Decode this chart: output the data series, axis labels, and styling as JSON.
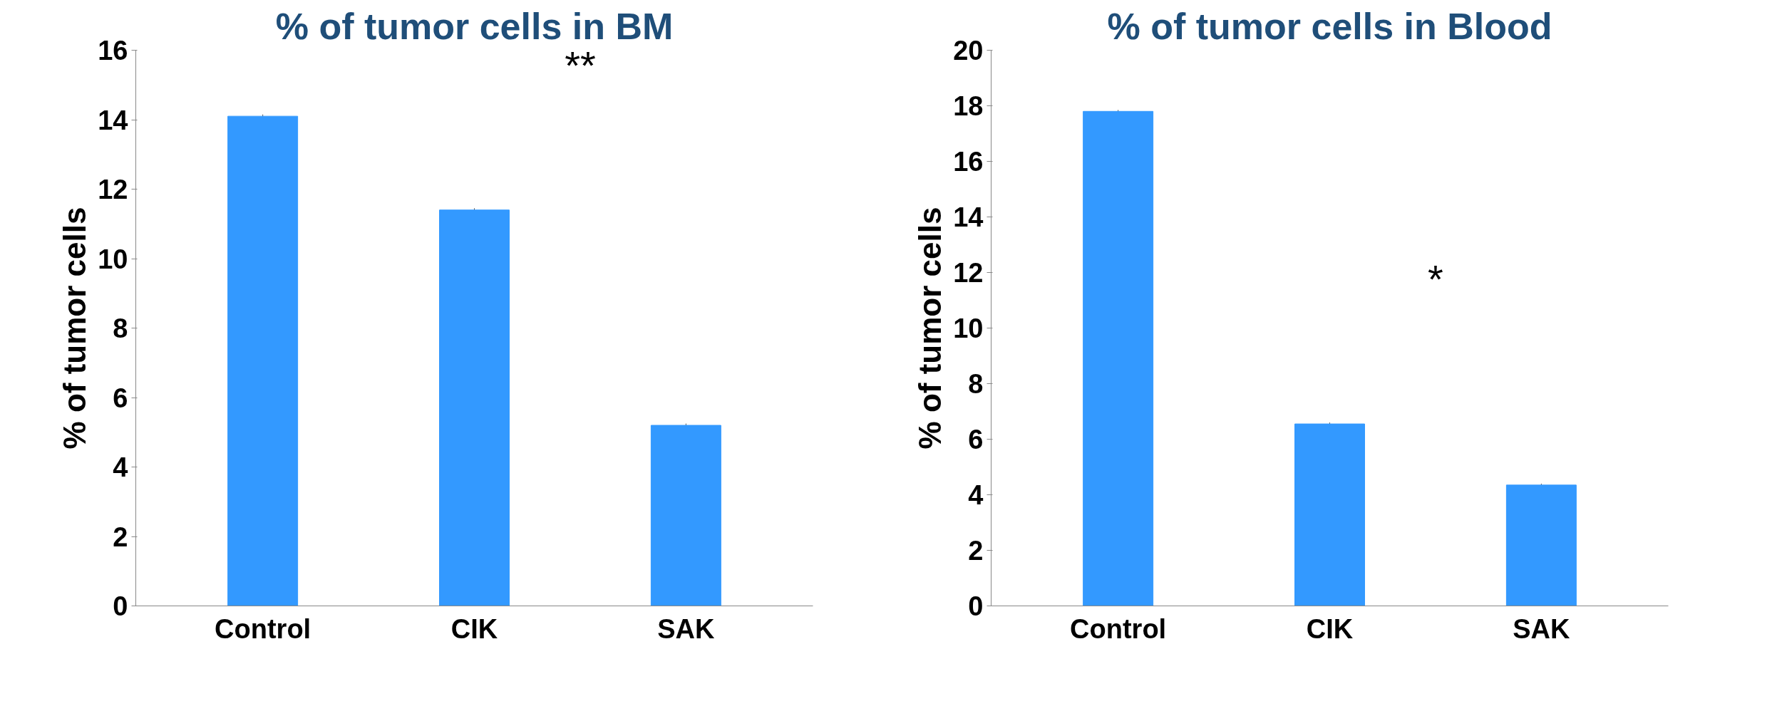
{
  "chart_data": [
    {
      "type": "bar",
      "title": "% of tumor cells in BM",
      "ylabel": "% of tumor cells",
      "categories": [
        "Control",
        "CIK",
        "SAK"
      ],
      "values": [
        14.1,
        11.4,
        5.2
      ],
      "errors": [
        0.05,
        0.05,
        0.05
      ],
      "color": "#3399ff",
      "ylim": [
        0,
        16
      ],
      "yticks": [
        0,
        2,
        4,
        6,
        8,
        10,
        12,
        14,
        16
      ],
      "grid": false,
      "annotations": [
        "**"
      ]
    },
    {
      "type": "bar",
      "title": "% of tumor cells in Blood",
      "ylabel": "% of tumor cells",
      "categories": [
        "Control",
        "CIK",
        "SAK"
      ],
      "values": [
        17.8,
        6.55,
        4.35
      ],
      "errors": [
        0.05,
        0.05,
        0.05
      ],
      "color": "#3399ff",
      "ylim": [
        0,
        20
      ],
      "yticks": [
        0,
        2,
        4,
        6,
        8,
        10,
        12,
        14,
        16,
        18,
        20
      ],
      "grid": false,
      "annotations": [
        "*"
      ]
    }
  ]
}
